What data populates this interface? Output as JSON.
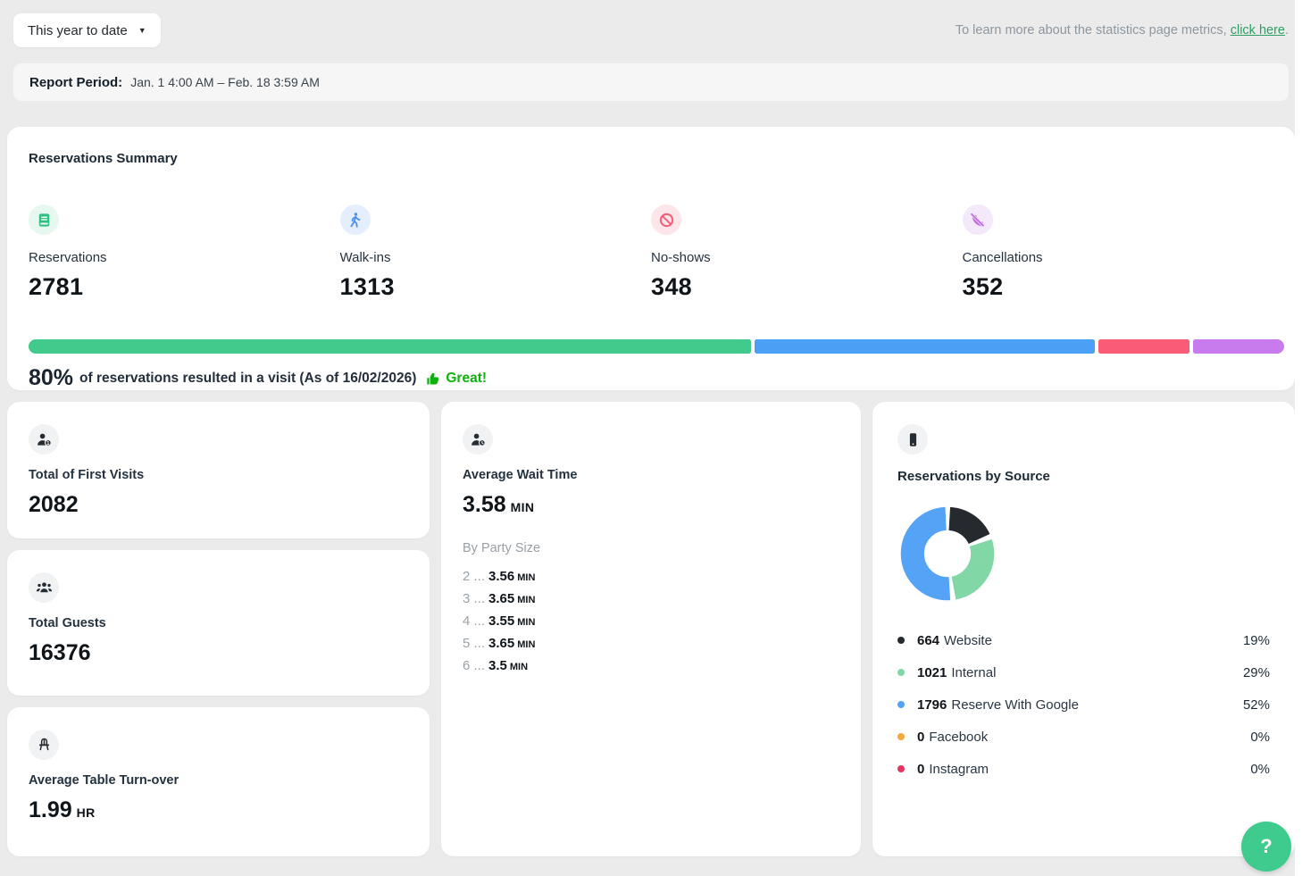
{
  "header": {
    "period_selector": "This year to date",
    "learn_more_prefix": "To learn more about the statistics page metrics, ",
    "learn_more_link": "click here",
    "learn_more_suffix": "."
  },
  "report_period": {
    "label": "Report Period:",
    "value": "Jan. 1 4:00 AM – Feb. 18 3:59 AM"
  },
  "summary": {
    "title": "Reservations Summary",
    "metrics": [
      {
        "label": "Reservations",
        "value": "2781",
        "icon": "reservation-book-icon",
        "icon_color": "#2fbf80",
        "icon_bg": "#e6f8ef",
        "bar_color": "#41ca8b",
        "pct": 58.0
      },
      {
        "label": "Walk-ins",
        "value": "1313",
        "icon": "walking-person-icon",
        "icon_color": "#4a90f0",
        "icon_bg": "#e4eefc",
        "bar_color": "#4aa0f5",
        "pct": 27.4
      },
      {
        "label": "No-shows",
        "value": "348",
        "icon": "no-entry-icon",
        "icon_color": "#f85c77",
        "icon_bg": "#fde5e9",
        "bar_color": "#f95c77",
        "pct": 7.3
      },
      {
        "label": "Cancellations",
        "value": "352",
        "icon": "phone-cancelled-icon",
        "icon_color": "#c06ae0",
        "icon_bg": "#f4e8fb",
        "bar_color": "#c77bec",
        "pct": 7.3
      }
    ],
    "visit_rate": {
      "pct": "80%",
      "text": "of reservations resulted in a visit (As of 16/02/2026)",
      "badge": "Great!",
      "badge_color": "#0fb10f"
    }
  },
  "cards": {
    "first_visits": {
      "label": "Total of First Visits",
      "value": "2082"
    },
    "total_guests": {
      "label": "Total Guests",
      "value": "16376"
    },
    "table_turnover": {
      "label": "Average Table Turn-over",
      "value": "1.99",
      "unit": "HR"
    },
    "wait_time": {
      "label": "Average Wait Time",
      "value": "3.58",
      "unit": "MIN",
      "by_party_size_label": "By Party Size",
      "separator": "...",
      "party_sizes": [
        {
          "size": "2",
          "value": "3.56",
          "unit": "MIN"
        },
        {
          "size": "3",
          "value": "3.65",
          "unit": "MIN"
        },
        {
          "size": "4",
          "value": "3.55",
          "unit": "MIN"
        },
        {
          "size": "5",
          "value": "3.65",
          "unit": "MIN"
        },
        {
          "size": "6",
          "value": "3.5",
          "unit": "MIN"
        }
      ]
    },
    "sources": {
      "title": "Reservations by Source",
      "items": [
        {
          "count": "664",
          "label": "Website",
          "pct": "19%",
          "color": "#26292d"
        },
        {
          "count": "1021",
          "label": "Internal",
          "pct": "29%",
          "color": "#7fd8a6"
        },
        {
          "count": "1796",
          "label": "Reserve With Google",
          "pct": "52%",
          "color": "#55a3f6"
        },
        {
          "count": "0",
          "label": "Facebook",
          "pct": "0%",
          "color": "#f6a83c"
        },
        {
          "count": "0",
          "label": "Instagram",
          "pct": "0%",
          "color": "#e73360"
        }
      ]
    }
  },
  "chart_data": [
    {
      "type": "pie",
      "title": "Reservations by Source",
      "labels": [
        "Website",
        "Internal",
        "Reserve With Google",
        "Facebook",
        "Instagram"
      ],
      "values": [
        664,
        1021,
        1796,
        0,
        0
      ],
      "percentages": [
        19,
        29,
        52,
        0,
        0
      ],
      "colors": [
        "#26292d",
        "#82d7a7",
        "#55a3f6",
        "#f6a83c",
        "#e73360"
      ],
      "donut": true,
      "start_angle": "top",
      "direction": "clockwise",
      "legend_position": "below"
    },
    {
      "type": "bar",
      "title": "Reservations Summary distribution",
      "categories": [
        "Reservations",
        "Walk-ins",
        "No-shows",
        "Cancellations"
      ],
      "values": [
        2781,
        1313,
        348,
        352
      ],
      "colors": [
        "#41ca8b",
        "#4aa0f5",
        "#f95c77",
        "#c77bec"
      ],
      "orientation": "horizontal-stacked"
    }
  ],
  "help_button": {
    "label": "?"
  }
}
